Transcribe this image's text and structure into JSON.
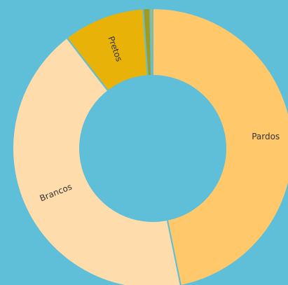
{
  "chart_data": {
    "type": "donut",
    "categories": [
      "Pardos",
      "Brancos",
      "Pretos",
      null,
      null
    ],
    "values": [
      46.8,
      42.7,
      9.4,
      0.8,
      0.3
    ],
    "colors": [
      "#ffc86b",
      "#ffdcac",
      "#e8b208",
      "#a19a1c",
      "#d9b02a"
    ],
    "start_angle": 0,
    "direction": "clockwise"
  }
}
